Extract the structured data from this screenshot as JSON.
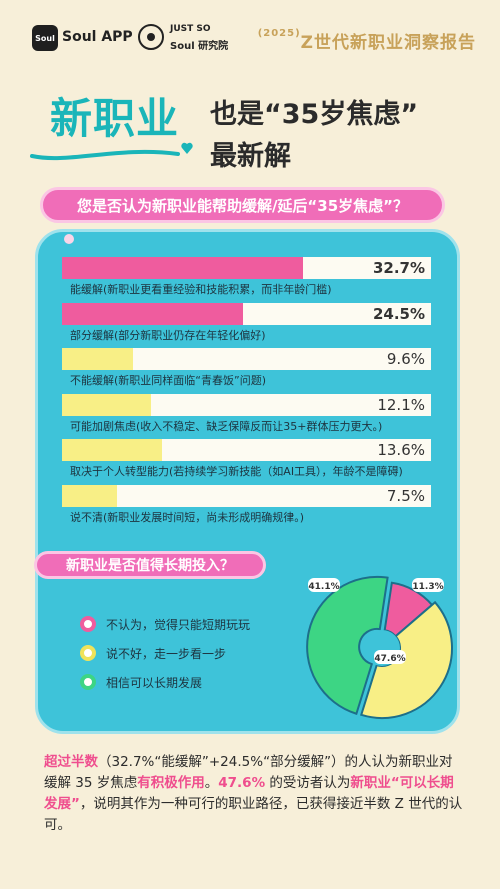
{
  "header": {
    "app_icon_text": "Soul",
    "app_name": "Soul APP",
    "lab_line1": "JUST SO",
    "lab_line2": "Soul 研究院",
    "report_year": "(2025)",
    "report_title": "Z世代新职业洞察报告"
  },
  "headline": {
    "part1": "新职业",
    "part2": "也是“35岁焦虑”",
    "part3": "最新解"
  },
  "question1": "您是否认为新职业能帮助缓解/延后“35岁焦虑”？",
  "colors": {
    "pink": "#ef5c9e",
    "yellow": "#f8ef86",
    "green": "#3dd584",
    "teal": "#3ec3d9"
  },
  "chart_data": [
    {
      "type": "bar",
      "orientation": "horizontal",
      "categories": [
        "能缓解(新职业更看重经验和技能积累，而非年龄门槛)",
        "部分缓解(部分新职业仍存在年轻化偏好)",
        "不能缓解(新职业同样面临“青春饭”问题)",
        "可能加剧焦虑(收入不稳定、缺乏保障反而让35+群体压力更大。)",
        "取决于个人转型能力(若持续学习新技能（如AI工具），年龄不是障碍)",
        "说不清(新职业发展时间短，尚未形成明确规律。)"
      ],
      "values": [
        32.7,
        24.5,
        9.6,
        12.1,
        13.6,
        7.5
      ],
      "value_labels": [
        "32.7%",
        "24.5%",
        "9.6%",
        "12.1%",
        "13.6%",
        "7.5%"
      ],
      "bar_colors": [
        "#ef5c9e",
        "#ef5c9e",
        "#f8ef86",
        "#f8ef86",
        "#f8ef86",
        "#f8ef86"
      ],
      "xlim": [
        0,
        50
      ]
    },
    {
      "type": "pie",
      "title": "新职业是否值得长期投入？",
      "labels": [
        "不认为，觉得只能短期玩玩",
        "说不好，走一步看一步",
        "相信可以长期发展"
      ],
      "values": [
        11.3,
        41.1,
        47.6
      ],
      "value_labels": [
        "11.3%",
        "41.1%",
        "47.6%"
      ],
      "colors": [
        "#ef5c9e",
        "#f8ef86",
        "#3dd584"
      ],
      "legend": "left"
    }
  ],
  "summary": {
    "s1": "超过半数",
    "s2": "（32.7%“能缓解”+24.5%“部分缓解”）的人认为新职业对缓解 35 岁焦虑",
    "s3": "有积极作用",
    "s4": "。",
    "s5": "47.6%",
    "s6": " 的受访者认为",
    "s7": "新职业“可以长期发展”",
    "s8": "，说明其作为一种可行的职业路径，已获得接近半数 Z 世代的认可。"
  }
}
